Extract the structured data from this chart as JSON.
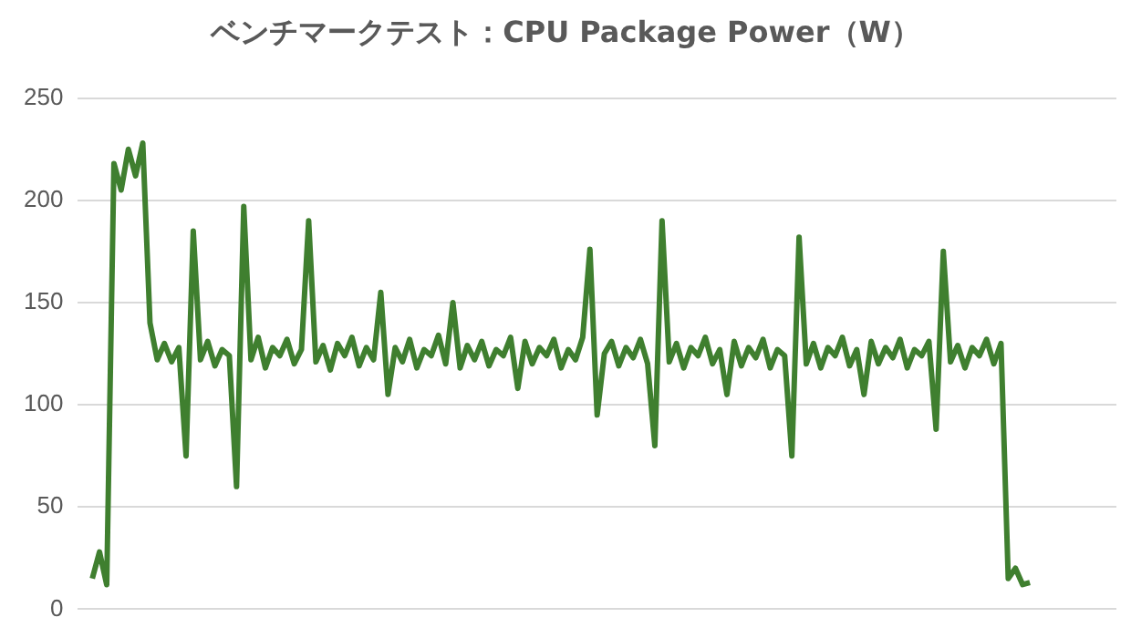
{
  "chart_data": {
    "type": "line",
    "title": "ベンチマークテスト：CPU Package Power（W）",
    "categories": [
      null,
      null,
      null,
      null,
      null,
      null,
      null,
      null,
      null,
      null,
      null,
      null,
      null,
      null,
      null,
      null,
      null,
      null,
      null,
      null,
      null,
      null,
      null,
      null,
      null,
      null,
      null,
      null,
      null,
      null,
      null,
      null,
      null,
      null,
      null,
      null,
      null,
      null,
      null,
      null,
      null,
      null,
      null,
      null,
      null,
      null,
      null,
      null,
      null,
      null,
      null,
      null,
      null,
      null,
      null,
      null,
      null,
      null,
      null,
      null,
      null,
      null,
      null,
      null,
      null,
      null,
      null,
      null,
      null,
      null,
      null,
      null,
      null,
      null,
      null,
      null,
      null,
      null,
      null,
      null,
      null,
      null,
      null,
      null,
      null,
      null,
      null,
      null,
      null,
      null,
      null,
      null,
      null,
      null,
      null,
      null,
      null,
      null,
      null,
      null,
      null,
      null,
      null,
      null,
      null,
      null,
      null,
      null,
      null,
      null,
      null,
      null,
      null,
      null,
      null,
      null,
      null,
      null,
      null,
      null,
      null,
      null,
      null,
      null,
      null,
      null,
      null,
      null,
      null,
      null,
      null,
      null,
      null,
      null,
      null,
      null,
      null,
      null,
      null,
      null,
      null,
      null,
      null,
      null,
      null
    ],
    "series": [
      {
        "color": "#3f7f2f",
        "values": [
          null,
          null,
          15,
          28,
          12,
          218,
          205,
          225,
          212,
          228,
          140,
          122,
          130,
          121,
          128,
          75,
          185,
          122,
          131,
          119,
          127,
          124,
          60,
          197,
          122,
          133,
          118,
          128,
          124,
          132,
          120,
          127,
          190,
          121,
          129,
          117,
          130,
          124,
          133,
          119,
          128,
          122,
          155,
          105,
          128,
          121,
          132,
          118,
          127,
          124,
          134,
          120,
          150,
          118,
          129,
          122,
          131,
          119,
          127,
          124,
          133,
          108,
          131,
          120,
          128,
          124,
          132,
          118,
          127,
          122,
          133,
          176,
          95,
          125,
          131,
          119,
          128,
          123,
          132,
          120,
          80,
          190,
          121,
          130,
          118,
          128,
          124,
          133,
          120,
          127,
          105,
          131,
          119,
          128,
          123,
          132,
          118,
          127,
          124,
          75,
          182,
          120,
          130,
          118,
          128,
          124,
          133,
          119,
          127,
          105,
          131,
          120,
          128,
          123,
          132,
          118,
          127,
          124,
          131,
          88,
          175,
          121,
          129,
          118,
          128,
          124,
          132,
          120,
          130,
          15,
          20,
          12,
          13,
          null,
          null,
          null,
          null,
          null,
          null,
          null,
          null,
          null,
          null,
          null,
          null
        ]
      }
    ],
    "ylim": [
      0,
      250
    ],
    "yticks": [
      0,
      50,
      100,
      150,
      200,
      250
    ],
    "grid": "y",
    "tick_labels": "y"
  }
}
